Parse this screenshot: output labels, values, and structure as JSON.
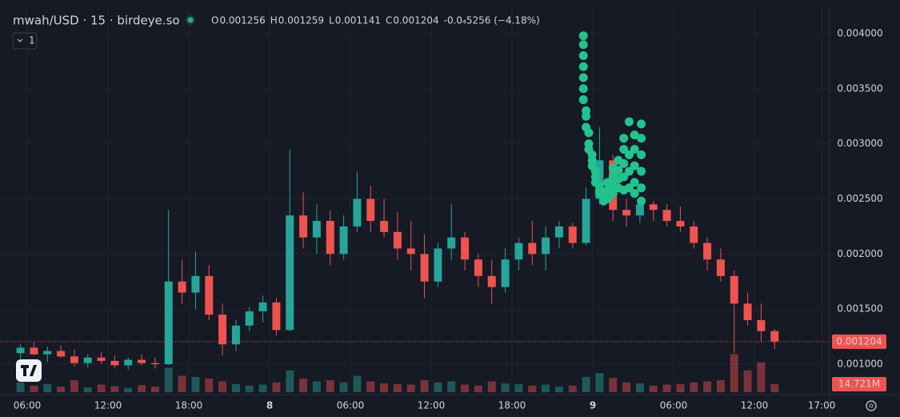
{
  "chart_data": {
    "type": "candlestick",
    "header": {
      "symbol": "mwah/USD · 15 · birdeye.so",
      "ohlc": [
        {
          "key": "O",
          "value": "0.001256"
        },
        {
          "key": "H",
          "value": "0.001259"
        },
        {
          "key": "L",
          "value": "0.001141"
        },
        {
          "key": "C",
          "value": "0.001204"
        }
      ],
      "change": "-0.0₄5256 (−4.18%)",
      "interval_badge": "1"
    },
    "up_color": "#26a69a",
    "down_color": "#ef5350",
    "xlim": [
      4.45,
      65.47
    ],
    "ylim": [
      0.000746,
      0.004232
    ],
    "xticks": [
      {
        "value": 6,
        "label": "06:00"
      },
      {
        "value": 12,
        "label": "12:00"
      },
      {
        "value": 18,
        "label": "18:00"
      },
      {
        "value": 24,
        "label": "8"
      },
      {
        "value": 30,
        "label": "06:00"
      },
      {
        "value": 36,
        "label": "12:00"
      },
      {
        "value": 42,
        "label": "18:00"
      },
      {
        "value": 48,
        "label": "9"
      },
      {
        "value": 54,
        "label": "06:00"
      },
      {
        "value": 60,
        "label": "12:00"
      },
      {
        "value": 65,
        "label": "17:00"
      }
    ],
    "yticks": [
      {
        "value": 0.001,
        "label": "0.001000"
      },
      {
        "value": 0.0015,
        "label": "0.001500"
      },
      {
        "value": 0.002,
        "label": "0.002000"
      },
      {
        "value": 0.0025,
        "label": "0.002500"
      },
      {
        "value": 0.003,
        "label": "0.003000"
      },
      {
        "value": 0.0035,
        "label": "0.003500"
      },
      {
        "value": 0.004,
        "label": "0.004000"
      }
    ],
    "grid": true,
    "x": [
      5.5,
      6.5,
      7.5,
      8.5,
      9.5,
      10.5,
      11.5,
      12.5,
      13.5,
      14.5,
      15.5,
      16.5,
      17.5,
      18.5,
      19.5,
      20.5,
      21.5,
      22.5,
      23.5,
      24.5,
      25.5,
      26.5,
      27.5,
      28.5,
      29.5,
      30.5,
      31.5,
      32.5,
      33.5,
      34.5,
      35.5,
      36.5,
      37.5,
      38.5,
      39.5,
      40.5,
      41.5,
      42.5,
      43.5,
      44.5,
      45.5,
      46.5,
      47.5,
      48.5,
      49.5,
      50.5,
      51.5,
      52.5,
      53.5,
      54.5,
      55.5,
      56.5,
      57.5,
      58.5,
      59.5,
      60.5,
      61.5
    ],
    "candles": [
      [
        0.0011,
        0.00118,
        0.00105,
        0.00115
      ],
      [
        0.00115,
        0.0012,
        0.00108,
        0.00109
      ],
      [
        0.00109,
        0.00116,
        0.00102,
        0.00112
      ],
      [
        0.00112,
        0.00117,
        0.00106,
        0.00107
      ],
      [
        0.00107,
        0.00113,
        0.00098,
        0.00101
      ],
      [
        0.00101,
        0.00109,
        0.00097,
        0.00106
      ],
      [
        0.00106,
        0.00111,
        0.001,
        0.00103
      ],
      [
        0.00103,
        0.00108,
        0.00096,
        0.00099
      ],
      [
        0.00099,
        0.00106,
        0.00095,
        0.00104
      ],
      [
        0.00104,
        0.00109,
        0.00099,
        0.00101
      ],
      [
        0.00101,
        0.00106,
        0.00096,
        0.001
      ],
      [
        0.001,
        0.0024,
        0.00099,
        0.00175
      ],
      [
        0.00175,
        0.00195,
        0.00155,
        0.00165
      ],
      [
        0.00165,
        0.00202,
        0.0015,
        0.0018
      ],
      [
        0.0018,
        0.0019,
        0.0014,
        0.00145
      ],
      [
        0.00145,
        0.00155,
        0.00108,
        0.00118
      ],
      [
        0.00118,
        0.0014,
        0.00112,
        0.00135
      ],
      [
        0.00135,
        0.00152,
        0.0013,
        0.00148
      ],
      [
        0.00148,
        0.00162,
        0.00138,
        0.00156
      ],
      [
        0.00156,
        0.0016,
        0.00126,
        0.00131
      ],
      [
        0.00131,
        0.00295,
        0.0013,
        0.00235
      ],
      [
        0.00235,
        0.00256,
        0.00205,
        0.00215
      ],
      [
        0.00215,
        0.00245,
        0.002,
        0.0023
      ],
      [
        0.0023,
        0.0024,
        0.0019,
        0.002
      ],
      [
        0.002,
        0.00235,
        0.00195,
        0.00225
      ],
      [
        0.00225,
        0.00275,
        0.0022,
        0.0025
      ],
      [
        0.0025,
        0.00262,
        0.0022,
        0.0023
      ],
      [
        0.0023,
        0.0025,
        0.00215,
        0.0022
      ],
      [
        0.0022,
        0.00238,
        0.00195,
        0.00205
      ],
      [
        0.00205,
        0.0023,
        0.00185,
        0.002
      ],
      [
        0.002,
        0.00218,
        0.0016,
        0.00175
      ],
      [
        0.00175,
        0.0021,
        0.0017,
        0.00205
      ],
      [
        0.00205,
        0.00245,
        0.00195,
        0.00215
      ],
      [
        0.00215,
        0.0022,
        0.00185,
        0.00195
      ],
      [
        0.00195,
        0.002,
        0.0017,
        0.0018
      ],
      [
        0.0018,
        0.00195,
        0.00155,
        0.0017
      ],
      [
        0.0017,
        0.00205,
        0.00165,
        0.00195
      ],
      [
        0.00195,
        0.00215,
        0.00185,
        0.0021
      ],
      [
        0.0021,
        0.0023,
        0.0019,
        0.002
      ],
      [
        0.002,
        0.00225,
        0.00185,
        0.00215
      ],
      [
        0.00215,
        0.0023,
        0.00205,
        0.00225
      ],
      [
        0.00225,
        0.00228,
        0.00205,
        0.0021
      ],
      [
        0.0021,
        0.0026,
        0.00208,
        0.0025
      ],
      [
        0.0025,
        0.00315,
        0.00245,
        0.00285
      ],
      [
        0.00285,
        0.0029,
        0.0023,
        0.0024
      ],
      [
        0.0024,
        0.0025,
        0.00225,
        0.00235
      ],
      [
        0.00235,
        0.0025,
        0.00228,
        0.00245
      ],
      [
        0.00245,
        0.00248,
        0.0023,
        0.0024
      ],
      [
        0.0024,
        0.00245,
        0.00225,
        0.0023
      ],
      [
        0.0023,
        0.00243,
        0.0022,
        0.00225
      ],
      [
        0.00225,
        0.0023,
        0.00205,
        0.0021
      ],
      [
        0.0021,
        0.00215,
        0.00185,
        0.00195
      ],
      [
        0.00195,
        0.00205,
        0.00175,
        0.0018
      ],
      [
        0.0018,
        0.00185,
        0.0011,
        0.00155
      ],
      [
        0.00155,
        0.00165,
        0.00135,
        0.0014
      ],
      [
        0.0014,
        0.00155,
        0.0012,
        0.0013
      ],
      [
        0.0013,
        0.00132,
        0.00114,
        0.001204
      ]
    ],
    "volume": {
      "values": [
        18,
        12,
        15,
        10,
        22,
        9,
        14,
        11,
        8,
        13,
        10,
        45,
        30,
        28,
        25,
        20,
        15,
        12,
        14,
        18,
        40,
        25,
        20,
        22,
        18,
        30,
        20,
        16,
        15,
        14,
        22,
        18,
        20,
        14,
        12,
        20,
        16,
        15,
        12,
        14,
        10,
        12,
        28,
        35,
        26,
        18,
        16,
        12,
        14,
        15,
        18,
        20,
        22,
        70,
        40,
        55,
        14.721
      ],
      "last_label": "14.721M"
    },
    "last_price": 0.001204,
    "markers": {
      "color": "#22c38e",
      "x": [
        47.3,
        47.3,
        47.3,
        47.3,
        47.3,
        47.3,
        47.3,
        47.5,
        47.5,
        47.5,
        47.7,
        47.7,
        47.7,
        47.95,
        47.95,
        47.95,
        48.2,
        48.2,
        48.2,
        48.5,
        48.5,
        48.5,
        48.8,
        48.8,
        49.1,
        49.1,
        49.1,
        49.5,
        49.5,
        49.5,
        49.5,
        49.9,
        49.9,
        49.9,
        49.9,
        50.3,
        50.3,
        50.3,
        50.3,
        50.3,
        50.7,
        50.7,
        50.7,
        50.7,
        51.1,
        51.1,
        51.1,
        51.1,
        51.1,
        51.6,
        51.6,
        51.6,
        51.6,
        51.6,
        51.6
      ],
      "y": [
        0.00398,
        0.0039,
        0.0038,
        0.0037,
        0.0036,
        0.0035,
        0.0034,
        0.0033,
        0.00325,
        0.00315,
        0.0031,
        0.003,
        0.00295,
        0.0029,
        0.00285,
        0.0028,
        0.00275,
        0.0027,
        0.00265,
        0.00262,
        0.00258,
        0.00255,
        0.00252,
        0.00248,
        0.0025,
        0.00258,
        0.00265,
        0.00255,
        0.00262,
        0.0027,
        0.00278,
        0.0026,
        0.00268,
        0.00276,
        0.00285,
        0.00258,
        0.0027,
        0.00282,
        0.00295,
        0.00305,
        0.0026,
        0.00275,
        0.0029,
        0.0032,
        0.00255,
        0.00265,
        0.0028,
        0.00295,
        0.00308,
        0.00248,
        0.0026,
        0.00275,
        0.0029,
        0.00305,
        0.00318
      ]
    }
  }
}
